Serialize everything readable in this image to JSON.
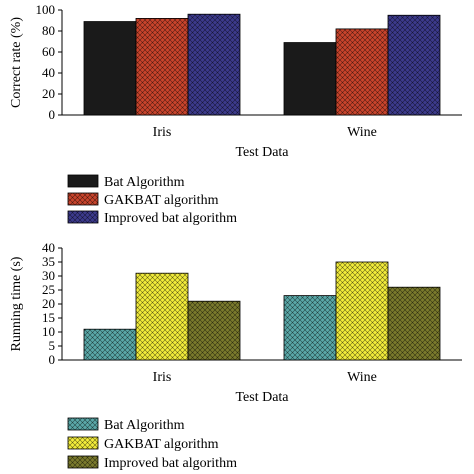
{
  "colors": {
    "bat": "#1a1a1a",
    "gakbat": "#c8442c",
    "improved": "#3c3a8c",
    "bat_run": "#5aa8a8",
    "gakbat_run": "#f2ec3a",
    "improved_run": "#7a7a2c"
  },
  "chart_data": [
    {
      "type": "bar",
      "categories": [
        "Iris",
        "Wine"
      ],
      "series": [
        {
          "name": "Bat Algorithm",
          "values": [
            89,
            69
          ],
          "color": "#1a1a1a",
          "pattern": "solid"
        },
        {
          "name": "GAKBAT algorithm",
          "values": [
            92,
            82
          ],
          "color": "#c8442c",
          "pattern": "crosshatch"
        },
        {
          "name": "Improved bat algorithm",
          "values": [
            96,
            95
          ],
          "color": "#3c3a8c",
          "pattern": "crosshatch"
        }
      ],
      "title": "",
      "xlabel": "Test Data",
      "ylabel": "Correct rate (%)",
      "ylim": [
        0,
        100
      ],
      "yticks": [
        0,
        20,
        40,
        60,
        80,
        100
      ],
      "grid": false,
      "legend": "below"
    },
    {
      "type": "bar",
      "categories": [
        "Iris",
        "Wine"
      ],
      "series": [
        {
          "name": "Bat Algorithm",
          "values": [
            11,
            23
          ],
          "color": "#5aa8a8",
          "pattern": "crosshatch"
        },
        {
          "name": "GAKBAT algorithm",
          "values": [
            31,
            35
          ],
          "color": "#f2ec3a",
          "pattern": "crosshatch"
        },
        {
          "name": "Improved bat algorithm",
          "values": [
            21,
            26
          ],
          "color": "#7a7a2c",
          "pattern": "crosshatch"
        }
      ],
      "title": "",
      "xlabel": "Test Data",
      "ylabel": "Running time (s)",
      "ylim": [
        0,
        40
      ],
      "yticks": [
        0,
        5,
        10,
        15,
        20,
        25,
        30,
        35,
        40
      ],
      "grid": false,
      "legend": "below"
    }
  ]
}
